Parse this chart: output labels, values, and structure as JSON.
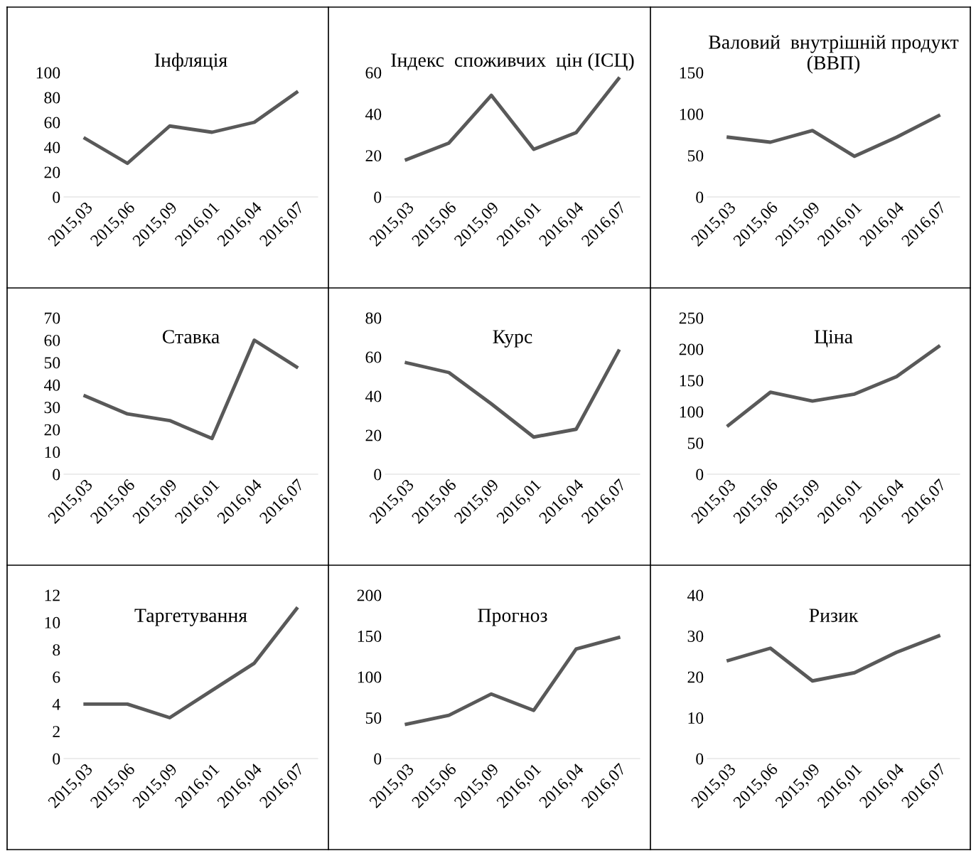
{
  "chart_data": [
    {
      "type": "line",
      "title": "Інфляція",
      "categories": [
        "2015,03",
        "2015,06",
        "2015,09",
        "2016,01",
        "2016,04",
        "2016,07"
      ],
      "values": [
        47,
        27,
        57,
        52,
        60,
        84
      ],
      "color": "#595959",
      "ylim": [
        0,
        100
      ],
      "yticks": [
        0,
        20,
        40,
        60,
        80,
        100
      ]
    },
    {
      "type": "line",
      "title": "Індекс  споживчих  цін (ІСЦ)",
      "categories": [
        "2015,03",
        "2015,06",
        "2015,09",
        "2016,01",
        "2016,04",
        "2016,07"
      ],
      "values": [
        18,
        26,
        49,
        23,
        31,
        57
      ],
      "color": "#595959",
      "ylim": [
        0,
        60
      ],
      "yticks": [
        0,
        20,
        40,
        60
      ]
    },
    {
      "type": "line",
      "title": "Валовий  внутрішній продукт (ВВП)",
      "categories": [
        "2015,03",
        "2015,06",
        "2015,09",
        "2016,01",
        "2016,04",
        "2016,07"
      ],
      "values": [
        72,
        66,
        80,
        49,
        72,
        98
      ],
      "color": "#595959",
      "ylim": [
        0,
        150
      ],
      "yticks": [
        0,
        50,
        100,
        150
      ]
    },
    {
      "type": "line",
      "title": "Ставка",
      "categories": [
        "2015,03",
        "2015,06",
        "2015,09",
        "2016,01",
        "2016,04",
        "2016,07"
      ],
      "values": [
        35,
        27,
        24,
        16,
        60,
        48
      ],
      "color": "#595959",
      "ylim": [
        0,
        70
      ],
      "yticks": [
        0,
        10,
        20,
        30,
        40,
        50,
        60,
        70
      ]
    },
    {
      "type": "line",
      "title": "Курс",
      "categories": [
        "2015,03",
        "2015,06",
        "2015,09",
        "2016,01",
        "2016,04",
        "2016,07"
      ],
      "values": [
        57,
        52,
        36,
        19,
        23,
        63
      ],
      "color": "#595959",
      "ylim": [
        0,
        80
      ],
      "yticks": [
        0,
        20,
        40,
        60,
        80
      ]
    },
    {
      "type": "line",
      "title": "Ціна",
      "categories": [
        "2015,03",
        "2015,06",
        "2015,09",
        "2016,01",
        "2016,04",
        "2016,07"
      ],
      "values": [
        78,
        131,
        117,
        128,
        156,
        204
      ],
      "color": "#595959",
      "ylim": [
        0,
        250
      ],
      "yticks": [
        0,
        50,
        100,
        150,
        200,
        250
      ]
    },
    {
      "type": "line",
      "title": "Таргетування",
      "categories": [
        "2015,03",
        "2015,06",
        "2015,09",
        "2016,01",
        "2016,04",
        "2016,07"
      ],
      "values": [
        4,
        4,
        3,
        5,
        7,
        11
      ],
      "color": "#595959",
      "ylim": [
        0,
        12
      ],
      "yticks": [
        0,
        2,
        4,
        6,
        8,
        10,
        12
      ]
    },
    {
      "type": "line",
      "title": "Прогноз",
      "categories": [
        "2015,03",
        "2015,06",
        "2015,09",
        "2016,01",
        "2016,04",
        "2016,07"
      ],
      "values": [
        42,
        53,
        79,
        59,
        134,
        148
      ],
      "color": "#595959",
      "ylim": [
        0,
        200
      ],
      "yticks": [
        0,
        50,
        100,
        150,
        200
      ]
    },
    {
      "type": "line",
      "title": "Ризик",
      "categories": [
        "2015,03",
        "2015,06",
        "2015,09",
        "2016,01",
        "2016,04",
        "2016,07"
      ],
      "values": [
        24,
        27,
        19,
        21,
        26,
        30
      ],
      "color": "#595959",
      "ylim": [
        0,
        40
      ],
      "yticks": [
        0,
        10,
        20,
        30,
        40
      ]
    }
  ]
}
